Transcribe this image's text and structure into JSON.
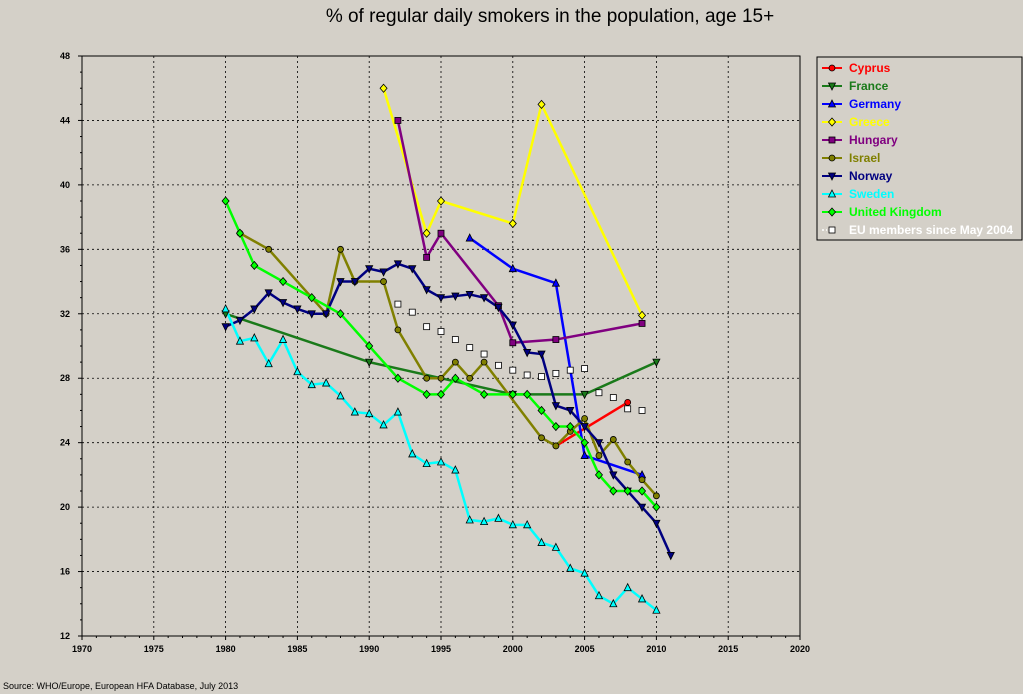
{
  "chart_data": {
    "type": "line",
    "title": "% of regular daily smokers in the population, age 15+",
    "xlabel": "",
    "ylabel": "",
    "xlim": [
      1970,
      2020
    ],
    "ylim": [
      12,
      48
    ],
    "x_ticks": [
      1970,
      1975,
      1980,
      1985,
      1990,
      1995,
      2000,
      2005,
      2010,
      2015,
      2020
    ],
    "y_ticks": [
      12,
      16,
      20,
      24,
      28,
      32,
      36,
      40,
      44,
      48
    ],
    "grid": true,
    "legend_position": "right",
    "source": "Source: WHO/Europe, European HFA Database, July 2013",
    "series": [
      {
        "name": "Cyprus",
        "color": "#ff0000",
        "marker": "circle",
        "dashed": false,
        "points": [
          [
            2003,
            23.8
          ],
          [
            2008,
            26.5
          ]
        ]
      },
      {
        "name": "France",
        "color": "#1a7a1a",
        "marker": "triangle-down",
        "dashed": false,
        "points": [
          [
            1980,
            32.0
          ],
          [
            1990,
            29.0
          ],
          [
            2000,
            27.0
          ],
          [
            2005,
            27.0
          ],
          [
            2010,
            29.0
          ]
        ]
      },
      {
        "name": "Germany",
        "color": "#0000ff",
        "marker": "triangle-up",
        "dashed": false,
        "points": [
          [
            1997,
            36.7
          ],
          [
            2000,
            34.8
          ],
          [
            2003,
            33.9
          ],
          [
            2005,
            23.2
          ],
          [
            2009,
            22.0
          ]
        ]
      },
      {
        "name": "Greece",
        "color": "#ffff00",
        "marker": "diamond",
        "dashed": false,
        "points": [
          [
            1991,
            46.0
          ],
          [
            1994,
            37.0
          ],
          [
            1995,
            39.0
          ],
          [
            2000,
            37.6
          ],
          [
            2002,
            45.0
          ],
          [
            2009,
            31.9
          ]
        ]
      },
      {
        "name": "Hungary",
        "color": "#800080",
        "marker": "square",
        "dashed": false,
        "points": [
          [
            1992,
            44.0
          ],
          [
            1994,
            35.5
          ],
          [
            1995,
            37.0
          ],
          [
            1999,
            32.5
          ],
          [
            2000,
            30.2
          ],
          [
            2003,
            30.4
          ],
          [
            2009,
            31.4
          ]
        ]
      },
      {
        "name": "Israel",
        "color": "#808000",
        "marker": "circle",
        "dashed": false,
        "points": [
          [
            1981,
            37.0
          ],
          [
            1983,
            36.0
          ],
          [
            1987,
            32.0
          ],
          [
            1988,
            36.0
          ],
          [
            1989,
            34.0
          ],
          [
            1991,
            34.0
          ],
          [
            1992,
            31.0
          ],
          [
            1994,
            28.0
          ],
          [
            1995,
            28.0
          ],
          [
            1996,
            29.0
          ],
          [
            1997,
            28.0
          ],
          [
            1998,
            29.0
          ],
          [
            2002,
            24.3
          ],
          [
            2003,
            23.8
          ],
          [
            2004,
            24.7
          ],
          [
            2005,
            25.5
          ],
          [
            2006,
            23.2
          ],
          [
            2007,
            24.2
          ],
          [
            2008,
            22.8
          ],
          [
            2009,
            21.7
          ],
          [
            2010,
            20.7
          ]
        ]
      },
      {
        "name": "Norway",
        "color": "#000080",
        "marker": "triangle-down",
        "dashed": false,
        "points": [
          [
            1980,
            31.2
          ],
          [
            1981,
            31.6
          ],
          [
            1982,
            32.3
          ],
          [
            1983,
            33.3
          ],
          [
            1984,
            32.7
          ],
          [
            1985,
            32.3
          ],
          [
            1986,
            32.0
          ],
          [
            1987,
            32.0
          ],
          [
            1988,
            34.0
          ],
          [
            1989,
            34.0
          ],
          [
            1990,
            34.8
          ],
          [
            1991,
            34.6
          ],
          [
            1992,
            35.1
          ],
          [
            1993,
            34.8
          ],
          [
            1994,
            33.5
          ],
          [
            1995,
            33.0
          ],
          [
            1996,
            33.1
          ],
          [
            1997,
            33.2
          ],
          [
            1998,
            33.0
          ],
          [
            1999,
            32.4
          ],
          [
            2000,
            31.3
          ],
          [
            2001,
            29.6
          ],
          [
            2002,
            29.5
          ],
          [
            2003,
            26.3
          ],
          [
            2004,
            26.0
          ],
          [
            2005,
            25.0
          ],
          [
            2006,
            24.0
          ],
          [
            2007,
            22.0
          ],
          [
            2008,
            21.0
          ],
          [
            2009,
            20.0
          ],
          [
            2010,
            19.0
          ],
          [
            2011,
            17.0
          ]
        ]
      },
      {
        "name": "Sweden",
        "color": "#00ffff",
        "marker": "triangle-up",
        "dashed": false,
        "points": [
          [
            1980,
            32.3
          ],
          [
            1981,
            30.3
          ],
          [
            1982,
            30.5
          ],
          [
            1983,
            28.9
          ],
          [
            1984,
            30.4
          ],
          [
            1985,
            28.4
          ],
          [
            1986,
            27.6
          ],
          [
            1987,
            27.7
          ],
          [
            1988,
            26.9
          ],
          [
            1989,
            25.9
          ],
          [
            1990,
            25.8
          ],
          [
            1991,
            25.1
          ],
          [
            1992,
            25.9
          ],
          [
            1993,
            23.3
          ],
          [
            1994,
            22.7
          ],
          [
            1995,
            22.8
          ],
          [
            1996,
            22.3
          ],
          [
            1997,
            19.2
          ],
          [
            1998,
            19.1
          ],
          [
            1999,
            19.3
          ],
          [
            2000,
            18.9
          ],
          [
            2001,
            18.9
          ],
          [
            2002,
            17.8
          ],
          [
            2003,
            17.5
          ],
          [
            2004,
            16.2
          ],
          [
            2005,
            15.9
          ],
          [
            2006,
            14.5
          ],
          [
            2007,
            14.0
          ],
          [
            2008,
            15.0
          ],
          [
            2009,
            14.3
          ],
          [
            2010,
            13.6
          ]
        ]
      },
      {
        "name": "United Kingdom",
        "color": "#00ff00",
        "marker": "diamond",
        "dashed": false,
        "points": [
          [
            1980,
            39.0
          ],
          [
            1981,
            37.0
          ],
          [
            1982,
            35.0
          ],
          [
            1984,
            34.0
          ],
          [
            1986,
            33.0
          ],
          [
            1988,
            32.0
          ],
          [
            1990,
            30.0
          ],
          [
            1992,
            28.0
          ],
          [
            1994,
            27.0
          ],
          [
            1995,
            27.0
          ],
          [
            1996,
            28.0
          ],
          [
            1998,
            27.0
          ],
          [
            2000,
            27.0
          ],
          [
            2001,
            27.0
          ],
          [
            2002,
            26.0
          ],
          [
            2003,
            25.0
          ],
          [
            2004,
            25.0
          ],
          [
            2005,
            24.0
          ],
          [
            2006,
            22.0
          ],
          [
            2007,
            21.0
          ],
          [
            2008,
            21.0
          ],
          [
            2009,
            21.0
          ],
          [
            2010,
            20.0
          ]
        ]
      },
      {
        "name": "EU members since May 2004",
        "color": "#ffffff",
        "marker": "square",
        "dashed": true,
        "points": [
          [
            1992,
            32.6
          ],
          [
            1993,
            32.1
          ],
          [
            1994,
            31.2
          ],
          [
            1995,
            30.9
          ],
          [
            1996,
            30.4
          ],
          [
            1997,
            29.9
          ],
          [
            1998,
            29.5
          ],
          [
            1999,
            28.8
          ],
          [
            2000,
            28.5
          ],
          [
            2001,
            28.2
          ],
          [
            2002,
            28.1
          ],
          [
            2003,
            28.3
          ],
          [
            2004,
            28.5
          ],
          [
            2005,
            28.6
          ],
          [
            2006,
            27.1
          ],
          [
            2007,
            26.8
          ],
          [
            2008,
            26.1
          ],
          [
            2009,
            26.0
          ]
        ]
      }
    ]
  }
}
